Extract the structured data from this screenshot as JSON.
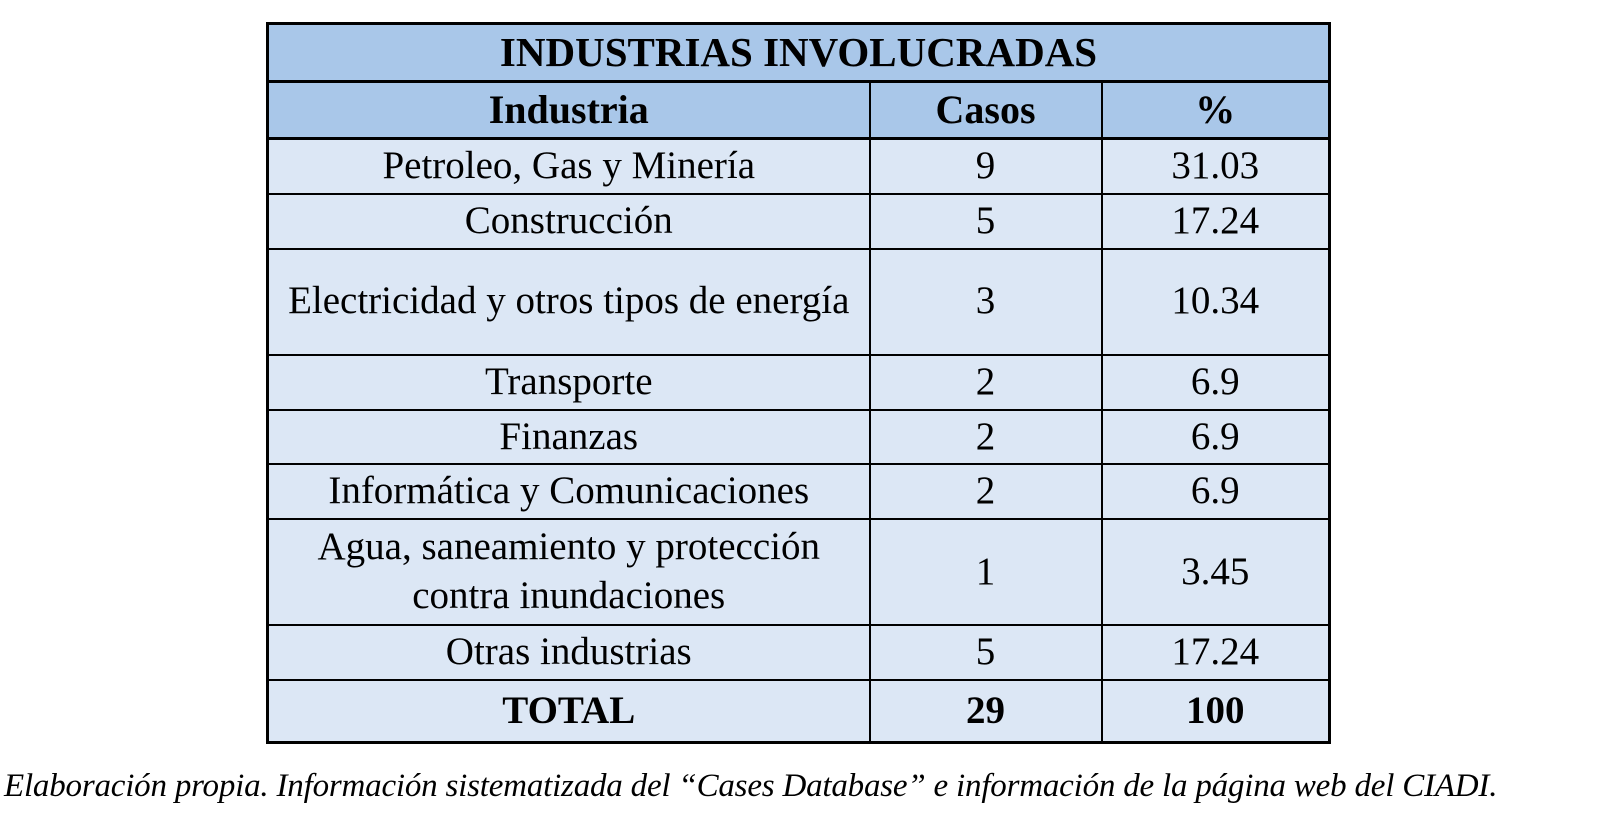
{
  "table": {
    "title": "INDUSTRIAS INVOLUCRADAS",
    "columns": {
      "industry": "Industria",
      "cases": "Casos",
      "percent": "%"
    },
    "rows": [
      {
        "industry": "Petroleo, Gas y Minería",
        "cases": "9",
        "percent": "31.03"
      },
      {
        "industry": "Construcción",
        "cases": "5",
        "percent": "17.24"
      },
      {
        "industry": "Electricidad y otros tipos de energía",
        "cases": "3",
        "percent": "10.34"
      },
      {
        "industry": "Transporte",
        "cases": "2",
        "percent": "6.9"
      },
      {
        "industry": "Finanzas",
        "cases": "2",
        "percent": "6.9"
      },
      {
        "industry": "Informática y Comunicaciones",
        "cases": "2",
        "percent": "6.9"
      },
      {
        "industry": "Agua, saneamiento y protección contra inundaciones",
        "cases": "1",
        "percent": "3.45"
      },
      {
        "industry": "Otras industrias",
        "cases": "5",
        "percent": "17.24"
      }
    ],
    "total": {
      "label": "TOTAL",
      "cases": "29",
      "percent": "100"
    }
  },
  "caption": "Elaboración propia. Información sistematizada del “Cases Database” e información de la página web del CIADI.",
  "colors": {
    "header_bg": "#a9c7e9",
    "row_bg": "#dce7f5",
    "border": "#000000"
  }
}
